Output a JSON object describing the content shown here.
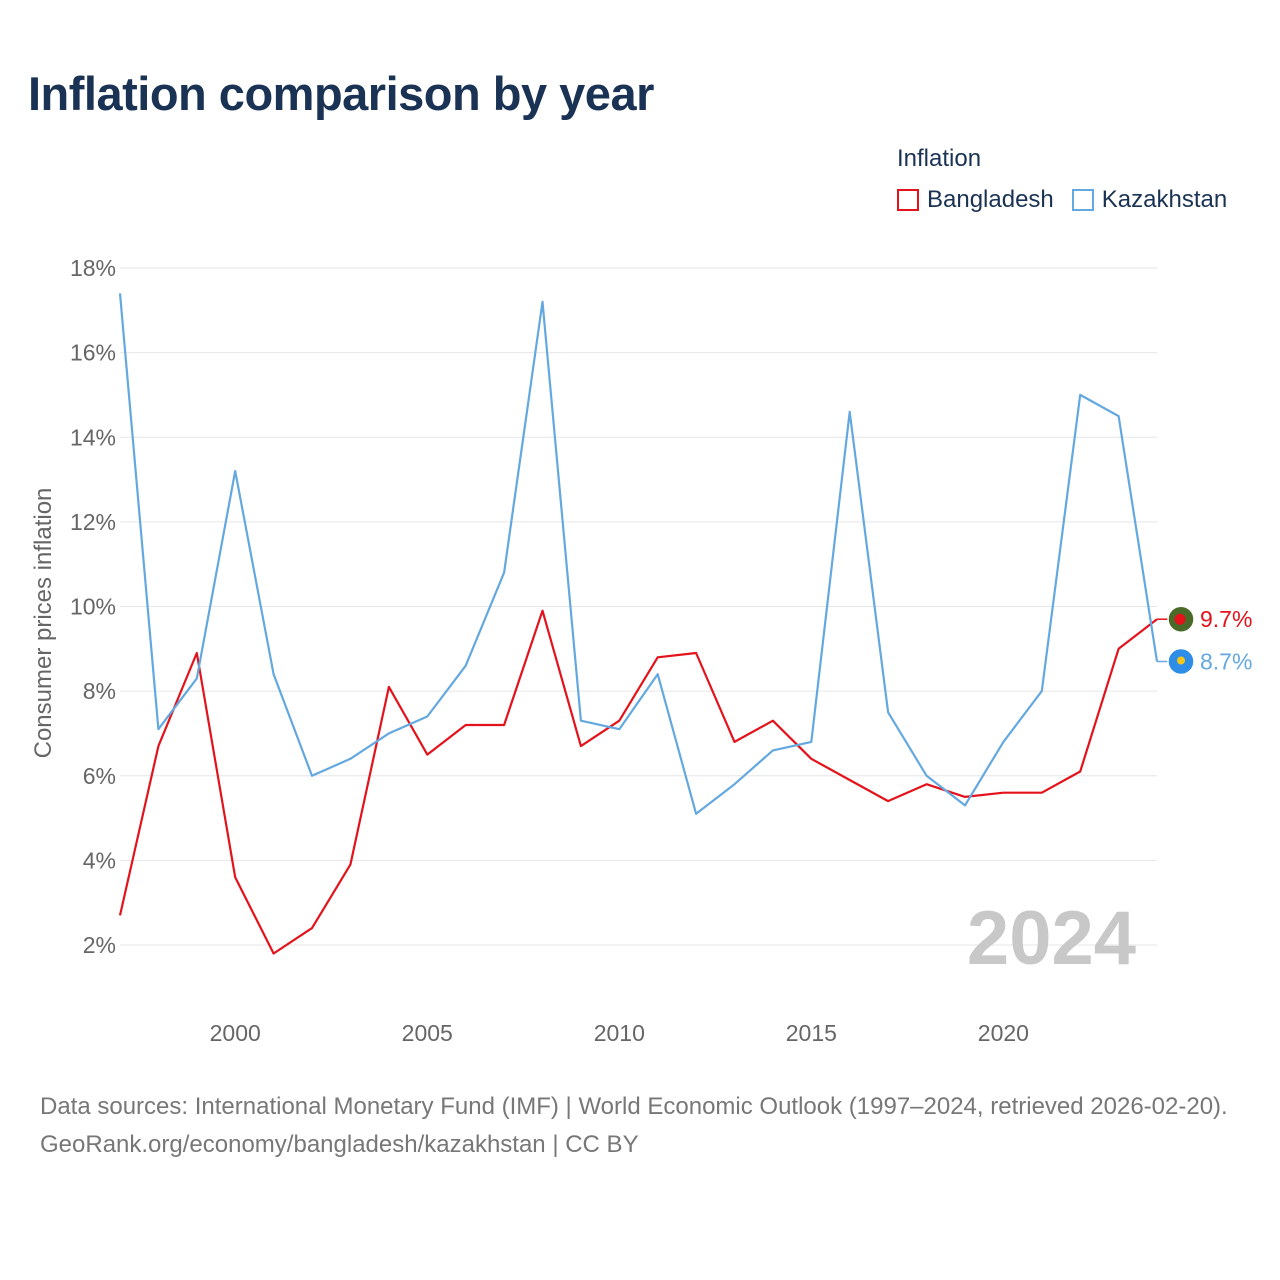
{
  "title": "Inflation comparison by year",
  "legend": {
    "title": "Inflation",
    "items": [
      {
        "label": "Bangladesh",
        "color": "#e3121b"
      },
      {
        "label": "Kazakhstan",
        "color": "#64a8e0"
      }
    ]
  },
  "watermark_year": "2024",
  "chart_data": {
    "type": "line",
    "title": "Inflation comparison by year",
    "xlabel": "",
    "ylabel": "Consumer prices inflation",
    "xlim": [
      1997,
      2024
    ],
    "ylim": [
      1,
      19
    ],
    "x_ticks": [
      2000,
      2005,
      2010,
      2015,
      2020
    ],
    "y_ticks": [
      2,
      4,
      6,
      8,
      10,
      12,
      14,
      16,
      18
    ],
    "y_tick_labels": [
      "2%",
      "4%",
      "6%",
      "8%",
      "10%",
      "12%",
      "14%",
      "16%",
      "18%"
    ],
    "grid": true,
    "x": [
      1997,
      1998,
      1999,
      2000,
      2001,
      2002,
      2003,
      2004,
      2005,
      2006,
      2007,
      2008,
      2009,
      2010,
      2011,
      2012,
      2013,
      2014,
      2015,
      2016,
      2017,
      2018,
      2019,
      2020,
      2021,
      2022,
      2023,
      2024
    ],
    "series": [
      {
        "name": "Bangladesh",
        "color": "#e3121b",
        "values": [
          2.7,
          6.7,
          8.9,
          3.6,
          1.8,
          2.4,
          3.9,
          8.1,
          6.5,
          7.2,
          7.2,
          9.9,
          6.7,
          7.3,
          8.8,
          8.9,
          6.8,
          7.3,
          6.4,
          5.9,
          5.4,
          5.8,
          5.5,
          5.6,
          5.6,
          6.1,
          9.0,
          9.7
        ],
        "end_label": "9.7%",
        "marker_color": "#4a6a2a",
        "marker_dot_color": "#e3121b"
      },
      {
        "name": "Kazakhstan",
        "color": "#64a8e0",
        "values": [
          17.4,
          7.1,
          8.3,
          13.2,
          8.4,
          6.0,
          6.4,
          7.0,
          7.4,
          8.6,
          10.8,
          17.2,
          7.3,
          7.1,
          8.4,
          5.1,
          5.8,
          6.6,
          6.8,
          14.6,
          7.5,
          6.0,
          5.3,
          6.8,
          8.0,
          15.0,
          14.5,
          8.7
        ],
        "end_label": "8.7%",
        "marker_color": "#2e8de6",
        "marker_dot_color": "#f5c518"
      }
    ]
  },
  "footer": {
    "sources": "Data sources: International Monetary Fund (IMF) | World Economic Outlook (1997–2024, retrieved 2026-02-20).",
    "credit": "GeoRank.org/economy/bangladesh/kazakhstan | CC BY"
  }
}
